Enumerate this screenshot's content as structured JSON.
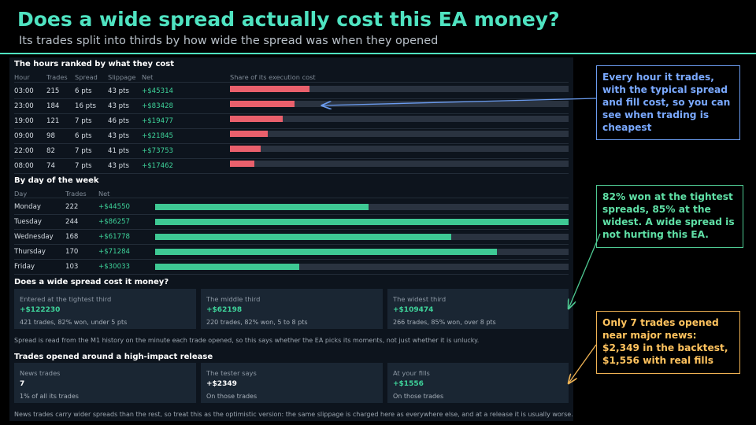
{
  "header": {
    "title": "Does a wide spread actually cost this EA money?",
    "subtitle": "Its trades split into thirds by how wide the spread was when they opened"
  },
  "hours": {
    "section_title": "The hours ranked by what they cost",
    "columns": {
      "hour": "Hour",
      "trades": "Trades",
      "spread": "Spread",
      "slippage": "Slippage",
      "net": "Net",
      "share": "Share of its execution cost"
    },
    "rows": [
      {
        "hour": "03:00",
        "trades": "215",
        "spread": "6 pts",
        "slippage": "43 pts",
        "net": "+$45314",
        "share": 0.235
      },
      {
        "hour": "23:00",
        "trades": "184",
        "spread": "16 pts",
        "slippage": "43 pts",
        "net": "+$83428",
        "share": 0.19
      },
      {
        "hour": "19:00",
        "trades": "121",
        "spread": "7 pts",
        "slippage": "46 pts",
        "net": "+$19477",
        "share": 0.155
      },
      {
        "hour": "09:00",
        "trades": "98",
        "spread": "6 pts",
        "slippage": "43 pts",
        "net": "+$21845",
        "share": 0.112
      },
      {
        "hour": "22:00",
        "trades": "82",
        "spread": "7 pts",
        "slippage": "41 pts",
        "net": "+$73753",
        "share": 0.09
      },
      {
        "hour": "08:00",
        "trades": "74",
        "spread": "7 pts",
        "slippage": "43 pts",
        "net": "+$17462",
        "share": 0.072
      }
    ]
  },
  "days": {
    "section_title": "By day of the week",
    "columns": {
      "day": "Day",
      "trades": "Trades",
      "net": "Net"
    },
    "rows": [
      {
        "day": "Monday",
        "trades": "222",
        "net": "+$44550",
        "value": 44550
      },
      {
        "day": "Tuesday",
        "trades": "244",
        "net": "+$86257",
        "value": 86257
      },
      {
        "day": "Wednesday",
        "trades": "168",
        "net": "+$61778",
        "value": 61778
      },
      {
        "day": "Thursday",
        "trades": "170",
        "net": "+$71284",
        "value": 71284
      },
      {
        "day": "Friday",
        "trades": "103",
        "net": "+$30033",
        "value": 30033
      }
    ]
  },
  "spread": {
    "section_title": "Does a wide spread cost it money?",
    "cards": [
      {
        "label": "Entered at the tightest third",
        "value": "+$122230",
        "sub": "421 trades, 82% won, under 5 pts"
      },
      {
        "label": "The middle third",
        "value": "+$62198",
        "sub": "220 trades, 82% won, 5 to 8 pts"
      },
      {
        "label": "The widest third",
        "value": "+$109474",
        "sub": "266 trades, 85% won, over 8 pts"
      }
    ],
    "note": "Spread is read from the M1 history on the minute each trade opened, so this says whether the EA picks its moments, not just whether it is unlucky."
  },
  "news": {
    "section_title": "Trades opened around a high-impact release",
    "cards": [
      {
        "label": "News trades",
        "value": "7",
        "sub": "1% of all its trades"
      },
      {
        "label": "The tester says",
        "value": "+$2349",
        "sub": "On those trades"
      },
      {
        "label": "At your fills",
        "value": "+$1556",
        "sub": "On those trades"
      }
    ],
    "note": "News trades carry wider spreads than the rest, so treat this as the optimistic version: the same slippage is charged here as everywhere else, and at a release it is usually worse."
  },
  "callouts": {
    "hours": "Every hour it trades, with the typical spread and fill cost, so you can see when trading is cheapest",
    "spread": "82% won at the tightest spreads, 85% at the widest. A wide spread is not hurting this EA.",
    "news": "Only 7 trades opened near major news: $2,349 in the backtest, $1,556 with real fills"
  },
  "colors": {
    "title": "#4fe3c1",
    "cost_bar": "#e9606c",
    "net_bar": "#3ec994",
    "callout_hours": "#7aa9ff",
    "callout_spread": "#5fe0a6",
    "callout_news": "#ffc35e"
  }
}
